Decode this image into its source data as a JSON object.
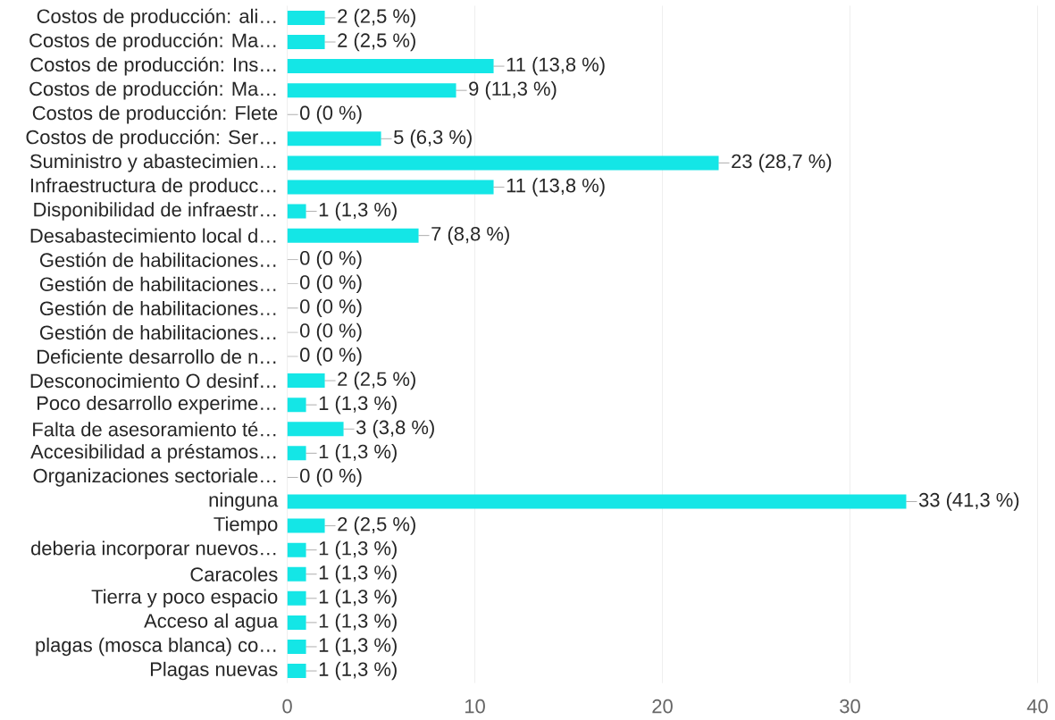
{
  "chart_data": {
    "type": "bar",
    "orientation": "horizontal",
    "categories": [
      "Costos de producción: ali…",
      "Costos de producción: Ma…",
      "Costos de producción: Ins…",
      "Costos de producción: Ma…",
      "Costos de producción: Flete",
      "Costos de producción: Ser…",
      "Suministro y abastecimien…",
      "Infraestructura de producc…",
      "Disponibilidad de infraestr…",
      "Desabastecimiento local d…",
      "Gestión de habilitaciones…",
      "Gestión de habilitaciones…",
      "Gestión de habilitaciones…",
      "Gestión de habilitaciones…",
      "Deficiente desarrollo de n…",
      "Desconocimiento O desinf…",
      "Poco desarrollo experime…",
      "Falta de asesoramiento té…",
      "Accesibilidad a préstamos…",
      "Organizaciones sectoriale…",
      "ninguna",
      "Tiempo",
      "deberia incorporar nuevos…",
      "Caracoles",
      "Tierra y poco espacio",
      "Acceso al agua",
      "plagas (mosca blanca) co…",
      "Plagas nuevas"
    ],
    "values": [
      2,
      2,
      11,
      9,
      0,
      5,
      23,
      11,
      1,
      7,
      0,
      0,
      0,
      0,
      0,
      2,
      1,
      3,
      1,
      0,
      33,
      2,
      1,
      1,
      1,
      1,
      1,
      1
    ],
    "value_labels": [
      "2 (2,5 %)",
      "2 (2,5 %)",
      "11 (13,8 %)",
      "9 (11,3 %)",
      "0 (0 %)",
      "5 (6,3 %)",
      "23 (28,7 %)",
      "11 (13,8 %)",
      "1 (1,3 %)",
      "7 (8,8 %)",
      "0 (0 %)",
      "0 (0 %)",
      "0 (0 %)",
      "0 (0 %)",
      "0 (0 %)",
      "2 (2,5 %)",
      "1 (1,3 %)",
      "3 (3,8 %)",
      "1 (1,3 %)",
      "0 (0 %)",
      "33 (41,3 %)",
      "2 (2,5 %)",
      "1 (1,3 %)",
      "1 (1,3 %)",
      "1 (1,3 %)",
      "1 (1,3 %)",
      "1 (1,3 %)",
      "1 (1,3 %)"
    ],
    "color": "#14e6e6",
    "xlim": [
      0,
      40
    ],
    "xticks": [
      0,
      10,
      20,
      30,
      40
    ],
    "grid": "x"
  }
}
